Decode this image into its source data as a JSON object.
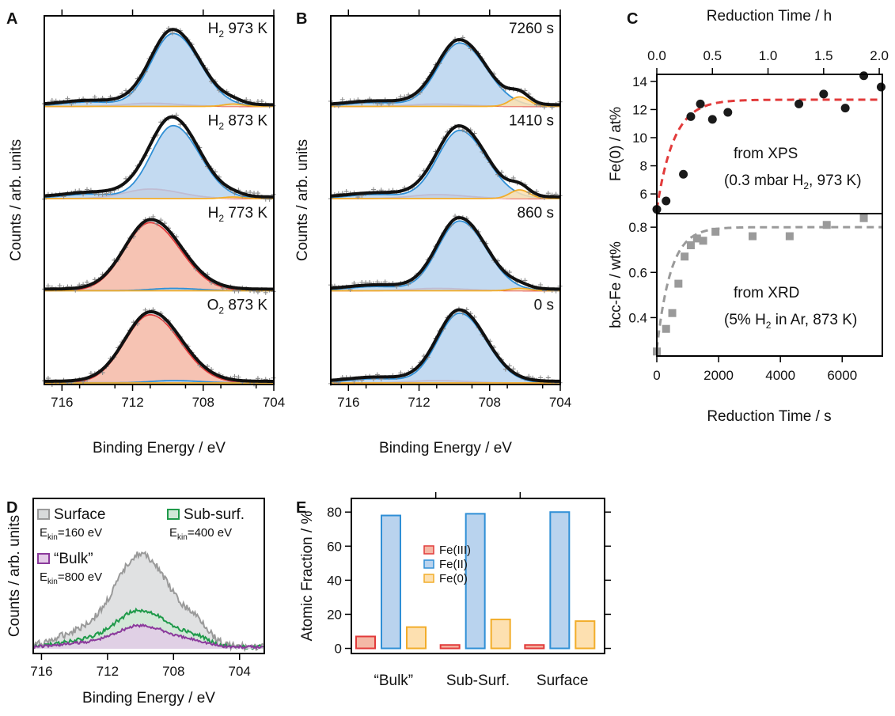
{
  "colors": {
    "fe3_fill": "#f4b8a6",
    "fe3_line": "#e23b3b",
    "fe2_fill": "#b9d3ee",
    "fe2_line": "#2f8fd6",
    "fe0_fill": "#fde0b0",
    "fe0_line": "#f2ad2a",
    "fit": "#111111",
    "raw": "#8c8c8c",
    "xps_fit": "#e23b3b",
    "xrd_fit": "#9a9a9a",
    "xrd_pts": "#9a9a9a",
    "xps_pts": "#1a1a1a",
    "surface": "#9a9a9a",
    "surface_fill": "#d8dadb",
    "subsurf": "#1f9a4a",
    "subsurf_fill": "#cfe8d6",
    "bulk": "#8b3a9c",
    "bulk_fill": "#e4cbe8"
  },
  "chart_data": [
    {
      "panel": "A",
      "type": "line",
      "xlabel": "Binding Energy / eV",
      "ylabel": "Counts / arb. units",
      "xlim": [
        717,
        704
      ],
      "xticks": [
        716,
        712,
        708,
        704
      ],
      "tick_labels": [
        "716",
        "712",
        "708",
        "704"
      ],
      "components": [
        "Fe(III)",
        "Fe(II)",
        "Fe(0)"
      ],
      "spectra": [
        {
          "label": "H2 973 K",
          "label_main": "H",
          "label_sub": "2",
          "label_rest": " 973 K",
          "fe3_amp": 0.04,
          "fe2_amp": 0.92,
          "fe0_amp": 0.03
        },
        {
          "label": "H2 873 K",
          "label_main": "H",
          "label_sub": "2",
          "label_rest": " 873 K",
          "fe3_amp": 0.12,
          "fe2_amp": 0.92,
          "fe0_amp": 0.02
        },
        {
          "label": "H2 773 K",
          "label_main": "H",
          "label_sub": "2",
          "label_rest": " 773 K",
          "fe3_amp": 0.86,
          "fe2_amp": 0.03,
          "fe0_amp": 0.0
        },
        {
          "label": "O2 873 K",
          "label_main": "O",
          "label_sub": "2",
          "label_rest": " 873 K",
          "fe3_amp": 0.86,
          "fe2_amp": 0.03,
          "fe0_amp": 0.0
        }
      ]
    },
    {
      "panel": "B",
      "type": "line",
      "xlabel": "Binding Energy / eV",
      "ylabel": "Counts / arb. units",
      "xlim": [
        717,
        704
      ],
      "xticks": [
        716,
        712,
        708,
        704
      ],
      "tick_labels": [
        "716",
        "712",
        "708",
        "704"
      ],
      "spectra": [
        {
          "label": "7260 s",
          "fe3_amp": 0.03,
          "fe2_amp": 0.8,
          "fe0_amp": 0.12
        },
        {
          "label": "1410 s",
          "fe3_amp": 0.05,
          "fe2_amp": 0.86,
          "fe0_amp": 0.11
        },
        {
          "label": "860 s",
          "fe3_amp": 0.03,
          "fe2_amp": 0.88,
          "fe0_amp": 0.03
        },
        {
          "label": "0 s",
          "fe3_amp": 0.03,
          "fe2_amp": 0.88,
          "fe0_amp": 0.0
        }
      ]
    },
    {
      "panel": "C",
      "type": "scatter",
      "top_xlabel": "Reduction Time / h",
      "top_xticks": [
        0.0,
        0.5,
        1.0,
        1.5,
        2.0
      ],
      "top_tick_labels": [
        "0.0",
        "0.5",
        "1.0",
        "1.5",
        "2.0"
      ],
      "xlabel": "Reduction Time / s",
      "xlim": [
        0,
        7300
      ],
      "xticks": [
        0,
        2000,
        4000,
        6000
      ],
      "tick_labels": [
        "0",
        "2000",
        "4000",
        "6000"
      ],
      "upper": {
        "ylabel": "Fe(0) / at%",
        "ylim": [
          4.6,
          14.5
        ],
        "yticks": [
          6,
          8,
          10,
          12,
          14
        ],
        "ytick_labels": [
          "6",
          "8",
          "10",
          "12",
          "14"
        ],
        "annotation_line1": "from XPS",
        "annotation_line2_a": "(0.3 mbar H",
        "annotation_line2_sub": "2",
        "annotation_line2_b": ", 973 K)",
        "x": [
          0,
          300,
          860,
          1100,
          1410,
          1800,
          2300,
          4600,
          5400,
          6100,
          6700,
          7260
        ],
        "y": [
          4.9,
          5.5,
          7.4,
          11.5,
          12.4,
          11.3,
          11.8,
          12.4,
          13.1,
          12.1,
          14.4,
          13.6
        ],
        "fit_plateau": 12.7,
        "fit_start": 4.9,
        "fit_tau": 550
      },
      "lower": {
        "ylabel": "bcc-Fe / wt%",
        "ylim": [
          0.23,
          0.86
        ],
        "yticks": [
          0.4,
          0.6,
          0.8
        ],
        "ytick_labels": [
          "0.4",
          "0.6",
          "0.8"
        ],
        "annotation_line1": "from XRD",
        "annotation_line2_a": "(5% H",
        "annotation_line2_sub": "2",
        "annotation_line2_b": " in Ar, 873 K)",
        "x": [
          0,
          300,
          500,
          700,
          900,
          1100,
          1300,
          1500,
          1900,
          3100,
          4300,
          5500,
          6700
        ],
        "y": [
          0.25,
          0.35,
          0.42,
          0.55,
          0.67,
          0.72,
          0.75,
          0.74,
          0.78,
          0.76,
          0.76,
          0.81,
          0.84
        ],
        "fit_plateau": 0.8,
        "fit_start": 0.26,
        "fit_tau": 450
      }
    },
    {
      "panel": "D",
      "type": "area",
      "xlabel": "Binding Energy / eV",
      "ylabel": "Counts / arb. units",
      "xlim": [
        716.5,
        702.5
      ],
      "xticks": [
        716,
        712,
        708,
        704
      ],
      "tick_labels": [
        "716",
        "712",
        "708",
        "704"
      ],
      "series": [
        {
          "name": "Surface",
          "ekin": "=160 eV",
          "amp": 0.95
        },
        {
          "name": "Sub-surf.",
          "ekin": "=400 eV",
          "amp": 0.38
        },
        {
          "name": "“Bulk”",
          "ekin": "=800 eV",
          "amp": 0.22
        }
      ],
      "ekin_main": "E",
      "ekin_sub": "kin"
    },
    {
      "panel": "E",
      "type": "bar",
      "ylabel": "Atomic Fraction / %",
      "ylim": [
        -3,
        88
      ],
      "yticks": [
        0,
        20,
        40,
        60,
        80
      ],
      "ytick_labels": [
        "0",
        "20",
        "40",
        "60",
        "80"
      ],
      "categories": [
        "“Bulk”",
        "Sub-Surf.",
        "Surface"
      ],
      "series": [
        {
          "name": "Fe(III)",
          "values": [
            7,
            2,
            2
          ]
        },
        {
          "name": "Fe(II)",
          "values": [
            78,
            79,
            80
          ]
        },
        {
          "name": "Fe(0)",
          "values": [
            12.5,
            17,
            16
          ]
        }
      ]
    }
  ],
  "panel_letters": [
    "A",
    "B",
    "C",
    "D",
    "E"
  ]
}
